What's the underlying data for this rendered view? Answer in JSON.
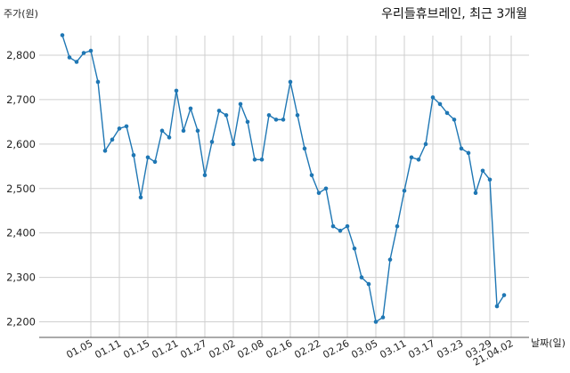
{
  "chart_data": {
    "type": "line",
    "title": "우리들휴브레인, 최근 3개월",
    "ylabel": "주가(원)",
    "xlabel": "날짜(일)",
    "ylim": [
      2180,
      2875
    ],
    "grid": true,
    "y_ticks": [
      2200,
      2300,
      2400,
      2500,
      2600,
      2700,
      2800
    ],
    "y_tick_labels": [
      "2,200",
      "2,300",
      "2,400",
      "2,500",
      "2,600",
      "2,700",
      "2,800"
    ],
    "x_ticks": [
      {
        "index": 4,
        "label": "01.05"
      },
      {
        "index": 8,
        "label": "01.11"
      },
      {
        "index": 12,
        "label": "01.15"
      },
      {
        "index": 16,
        "label": "01.21"
      },
      {
        "index": 20,
        "label": "01.27"
      },
      {
        "index": 24,
        "label": "02.02"
      },
      {
        "index": 28,
        "label": "02.08"
      },
      {
        "index": 32,
        "label": "02.16"
      },
      {
        "index": 36,
        "label": "02.22"
      },
      {
        "index": 40,
        "label": "02.26"
      },
      {
        "index": 44,
        "label": "03.05"
      },
      {
        "index": 48,
        "label": "03.11"
      },
      {
        "index": 52,
        "label": "03.17"
      },
      {
        "index": 56,
        "label": "03.23"
      },
      {
        "index": 60,
        "label": "03.29"
      },
      {
        "index": 63,
        "label": "21.04.02"
      }
    ],
    "series": [
      {
        "color": "#1f77b4",
        "values": [
          2845,
          2795,
          2785,
          2805,
          2810,
          2740,
          2585,
          2610,
          2635,
          2640,
          2575,
          2480,
          2570,
          2560,
          2630,
          2615,
          2720,
          2630,
          2680,
          2630,
          2530,
          2605,
          2675,
          2665,
          2600,
          2690,
          2650,
          2565,
          2565,
          2665,
          2655,
          2655,
          2740,
          2665,
          2590,
          2530,
          2490,
          2500,
          2415,
          2405,
          2415,
          2365,
          2300,
          2285,
          2200,
          2210,
          2340,
          2415,
          2495,
          2570,
          2565,
          2600,
          2705,
          2690,
          2670,
          2655,
          2590,
          2580,
          2490,
          2540,
          2520,
          2235,
          2260
        ]
      }
    ]
  }
}
